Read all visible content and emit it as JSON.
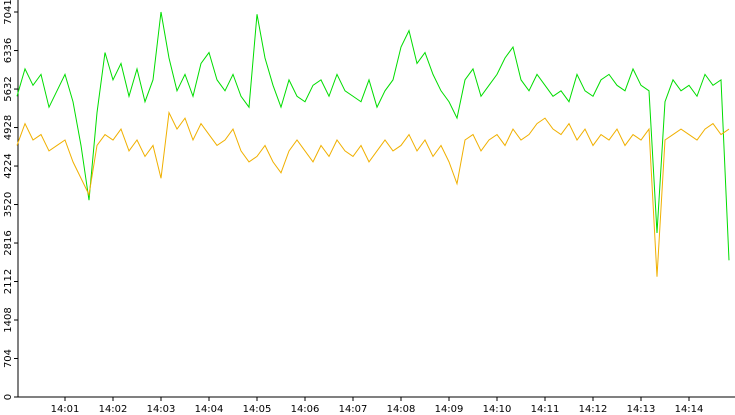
{
  "chart_data": {
    "type": "line",
    "categories": [
      "",
      null,
      null,
      null,
      null,
      null,
      "14:01",
      null,
      null,
      null,
      null,
      null,
      "14:02",
      null,
      null,
      null,
      null,
      null,
      "14:03",
      null,
      null,
      null,
      null,
      null,
      "14:04",
      null,
      null,
      null,
      null,
      null,
      "14:05",
      null,
      null,
      null,
      null,
      null,
      "14:06",
      null,
      null,
      null,
      null,
      null,
      "14:07",
      null,
      null,
      null,
      null,
      null,
      "14:08",
      null,
      null,
      null,
      null,
      null,
      "14:09",
      null,
      null,
      null,
      null,
      null,
      "14:10",
      null,
      null,
      null,
      null,
      null,
      "14:11",
      null,
      null,
      null,
      null,
      null,
      "14:12",
      null,
      null,
      null,
      null,
      null,
      "14:13",
      null,
      null,
      null,
      null,
      null,
      "14:14",
      null,
      null,
      null,
      null,
      null
    ],
    "series": [
      {
        "color": "#00dd00",
        "values": [
          5500,
          6000,
          5700,
          5900,
          5300,
          5600,
          5900,
          5400,
          4600,
          3600,
          5200,
          6300,
          5800,
          6100,
          5500,
          6000,
          5400,
          5800,
          7041,
          6200,
          5600,
          5900,
          5500,
          6100,
          6300,
          5800,
          5600,
          5900,
          5500,
          5300,
          7000,
          6200,
          5700,
          5300,
          5800,
          5500,
          5400,
          5700,
          5800,
          5500,
          5900,
          5600,
          5500,
          5400,
          5800,
          5300,
          5600,
          5800,
          6400,
          6700,
          6100,
          6300,
          5900,
          5600,
          5400,
          5100,
          5800,
          6000,
          5500,
          5700,
          5900,
          6200,
          6400,
          5800,
          5600,
          5900,
          5700,
          5500,
          5600,
          5400,
          5900,
          5600,
          5500,
          5800,
          5900,
          5700,
          5600,
          6000,
          5700,
          5600,
          3000,
          5400,
          5800,
          5600,
          5700,
          5500,
          5900,
          5700,
          5800,
          2500
        ]
      },
      {
        "color": "#f0b000",
        "values": [
          4600,
          5000,
          4700,
          4800,
          4500,
          4600,
          4700,
          4300,
          4000,
          3700,
          4600,
          4800,
          4700,
          4900,
          4500,
          4700,
          4400,
          4600,
          4000,
          5200,
          4900,
          5100,
          4700,
          5000,
          4800,
          4600,
          4700,
          4900,
          4500,
          4300,
          4400,
          4600,
          4300,
          4100,
          4500,
          4700,
          4500,
          4300,
          4600,
          4400,
          4700,
          4500,
          4400,
          4600,
          4300,
          4500,
          4700,
          4500,
          4600,
          4800,
          4500,
          4700,
          4400,
          4600,
          4300,
          3900,
          4700,
          4800,
          4500,
          4700,
          4800,
          4600,
          4900,
          4700,
          4800,
          5000,
          5100,
          4900,
          4800,
          5000,
          4700,
          4900,
          4600,
          4800,
          4700,
          4900,
          4600,
          4800,
          4700,
          4900,
          2200,
          4700,
          4800,
          4900,
          4800,
          4700,
          4900,
          5000,
          4800,
          4900
        ]
      }
    ],
    "ylim": [
      0,
      7041
    ],
    "yticks": [
      0,
      704,
      1408,
      2112,
      2816,
      3520,
      4224,
      4928,
      5632,
      6336,
      7041
    ]
  }
}
